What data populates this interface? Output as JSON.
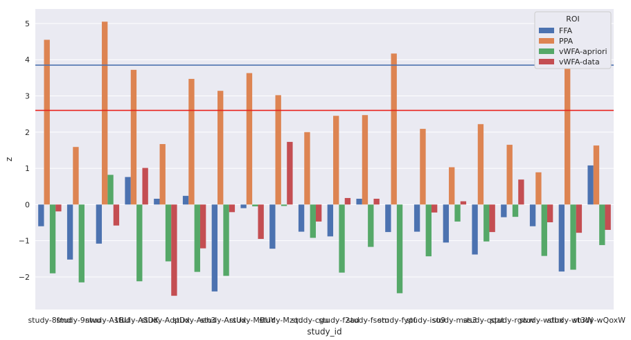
{
  "chart_data": {
    "type": "bar",
    "xlabel": "study_id",
    "ylabel": "z",
    "ylim": [
      -2.9,
      5.4
    ],
    "yticks": [
      -2,
      -1,
      0,
      1,
      2,
      3,
      4,
      5
    ],
    "grid": "horizontal",
    "background_color": "#eaeaf2",
    "legend": {
      "title": "ROI",
      "position": "top-right"
    },
    "categories": [
      "study-8fmd",
      "study-9nwu",
      "study-A1BU",
      "study-ASDK",
      "study-AdpDx",
      "study-Aeh3",
      "study-ArsUx",
      "study-MBUY",
      "study-Mzqd",
      "study-cgu",
      "study-f2ad",
      "study-fsom",
      "study-fypf",
      "study-isu9",
      "study-mas3",
      "study-qqat",
      "study-rgww",
      "study-wdbx",
      "study-wt3W",
      "study-wQoxW"
    ],
    "series": [
      {
        "name": "FFA",
        "color": "#4c72b0",
        "values": [
          -0.6,
          -1.52,
          -1.08,
          0.76,
          0.16,
          0.24,
          -2.4,
          -0.1,
          -1.22,
          -0.75,
          -0.88,
          0.16,
          -0.76,
          -0.75,
          -1.05,
          -1.38,
          -0.35,
          -0.6,
          -1.85,
          1.08
        ]
      },
      {
        "name": "PPA",
        "color": "#dd8452",
        "values": [
          4.55,
          1.59,
          5.05,
          3.72,
          1.67,
          3.47,
          3.14,
          3.63,
          3.02,
          2.0,
          2.45,
          2.47,
          4.17,
          2.09,
          1.03,
          2.22,
          1.65,
          0.89,
          3.76,
          1.63
        ]
      },
      {
        "name": "vWFA-apriori",
        "color": "#55a868",
        "values": [
          -1.9,
          -2.15,
          0.82,
          -2.12,
          -1.57,
          -1.86,
          -1.97,
          -0.05,
          -0.04,
          -0.92,
          -1.88,
          -1.17,
          -2.45,
          -1.43,
          -0.47,
          -1.02,
          -0.34,
          -1.42,
          -1.8,
          -1.12
        ]
      },
      {
        "name": "vWFA-data",
        "color": "#c44e52",
        "values": [
          -0.19,
          0.0,
          -0.58,
          1.01,
          -2.52,
          -1.21,
          -0.21,
          -0.95,
          1.73,
          -0.47,
          0.18,
          0.16,
          0.0,
          -0.22,
          0.09,
          -0.76,
          0.69,
          -0.49,
          -0.78,
          -0.7
        ]
      }
    ],
    "reference_lines": [
      {
        "y": 3.85,
        "color": "#4c72b0"
      },
      {
        "y": 2.6,
        "color": "#e8221c"
      }
    ]
  }
}
